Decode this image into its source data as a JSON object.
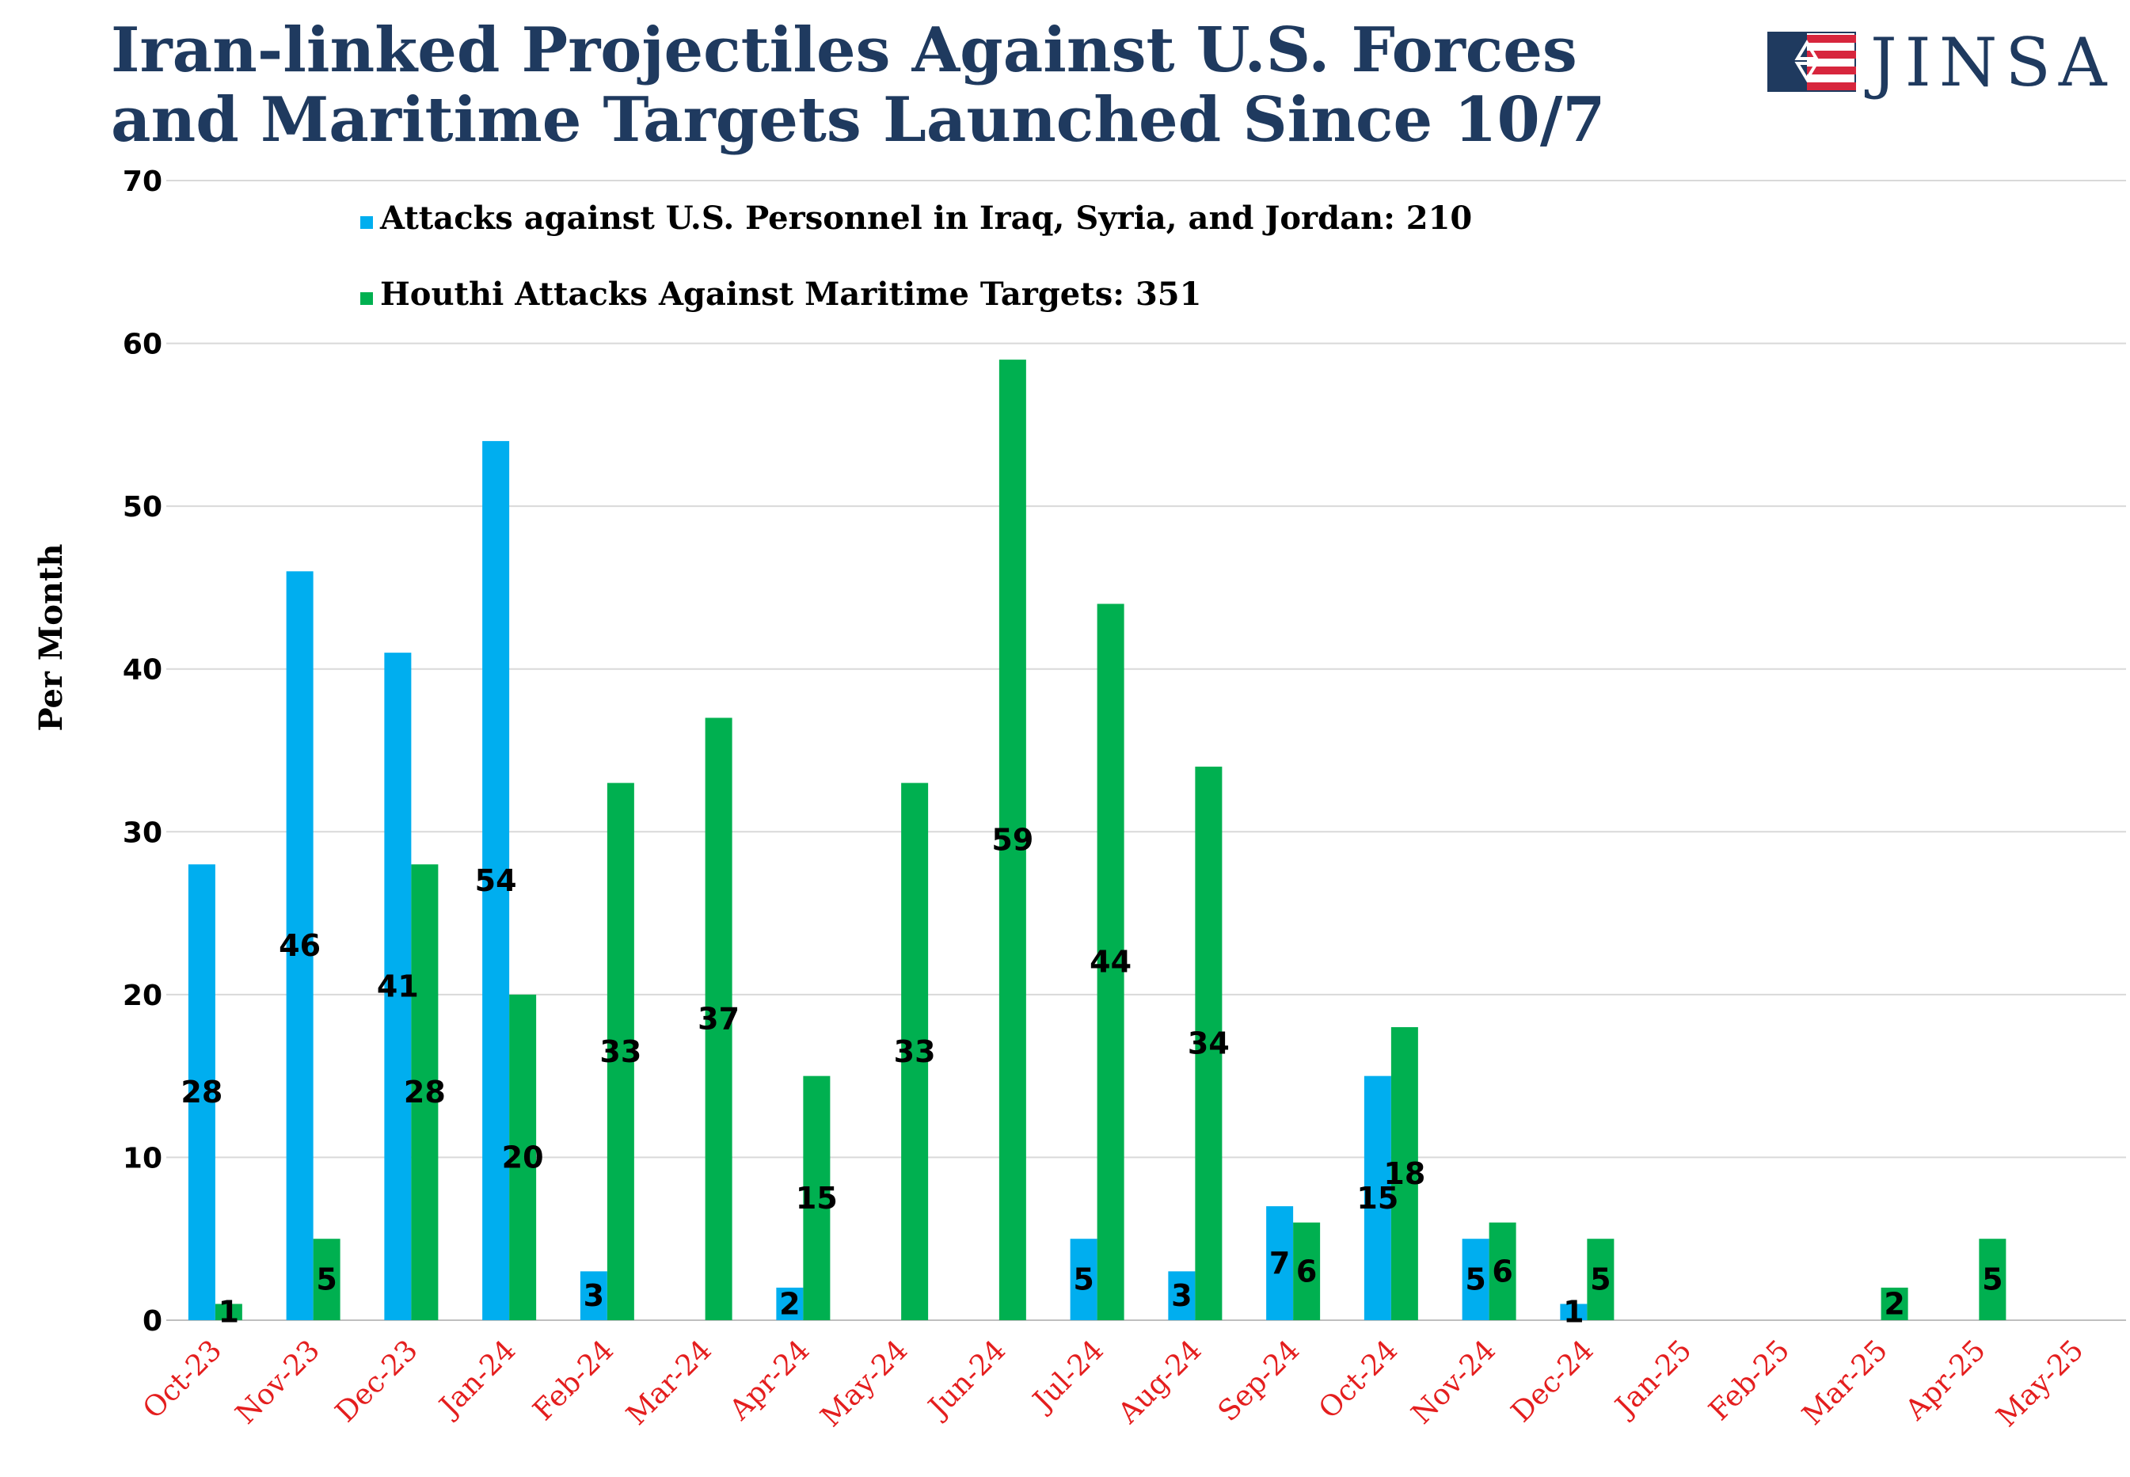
{
  "title_line1": "Iran-linked Projectiles Against U.S. Forces",
  "title_line2": "and Maritime Targets Launched Since 10/7",
  "logo": {
    "name": "JINSA",
    "icon": "star-flag-icon"
  },
  "colors": {
    "title": "#1f3a5f",
    "us": "#00aeef",
    "houthi": "#00b050",
    "xtick": "#e41e1e",
    "grid": "#d9d9d9"
  },
  "chart_data": {
    "type": "bar",
    "title": "Iran-linked Projectiles Against U.S. Forces and Maritime Targets Launched Since 10/7",
    "xlabel": "",
    "ylabel": "Per Month",
    "ylim": [
      0,
      70
    ],
    "yticks": [
      0,
      10,
      20,
      30,
      40,
      50,
      60,
      70
    ],
    "grid": true,
    "legend_position": "top-left",
    "categories": [
      "Oct-23",
      "Nov-23",
      "Dec-23",
      "Jan-24",
      "Feb-24",
      "Mar-24",
      "Apr-24",
      "May-24",
      "Jun-24",
      "Jul-24",
      "Aug-24",
      "Sep-24",
      "Oct-24",
      "Nov-24",
      "Dec-24",
      "Jan-25",
      "Feb-25",
      "Mar-25",
      "Apr-25",
      "May-25"
    ],
    "series": [
      {
        "name": "Attacks against U.S. Personnel in Iraq, Syria, and Jordan: 210",
        "color": "#00aeef",
        "values": [
          28,
          46,
          41,
          54,
          3,
          null,
          2,
          null,
          null,
          5,
          3,
          7,
          15,
          5,
          1,
          null,
          null,
          null,
          null,
          null
        ]
      },
      {
        "name": "Houthi Attacks Against Maritime Targets: 351",
        "color": "#00b050",
        "values": [
          1,
          5,
          28,
          20,
          33,
          37,
          15,
          33,
          59,
          44,
          34,
          6,
          18,
          6,
          5,
          null,
          null,
          2,
          5,
          null
        ]
      }
    ]
  }
}
